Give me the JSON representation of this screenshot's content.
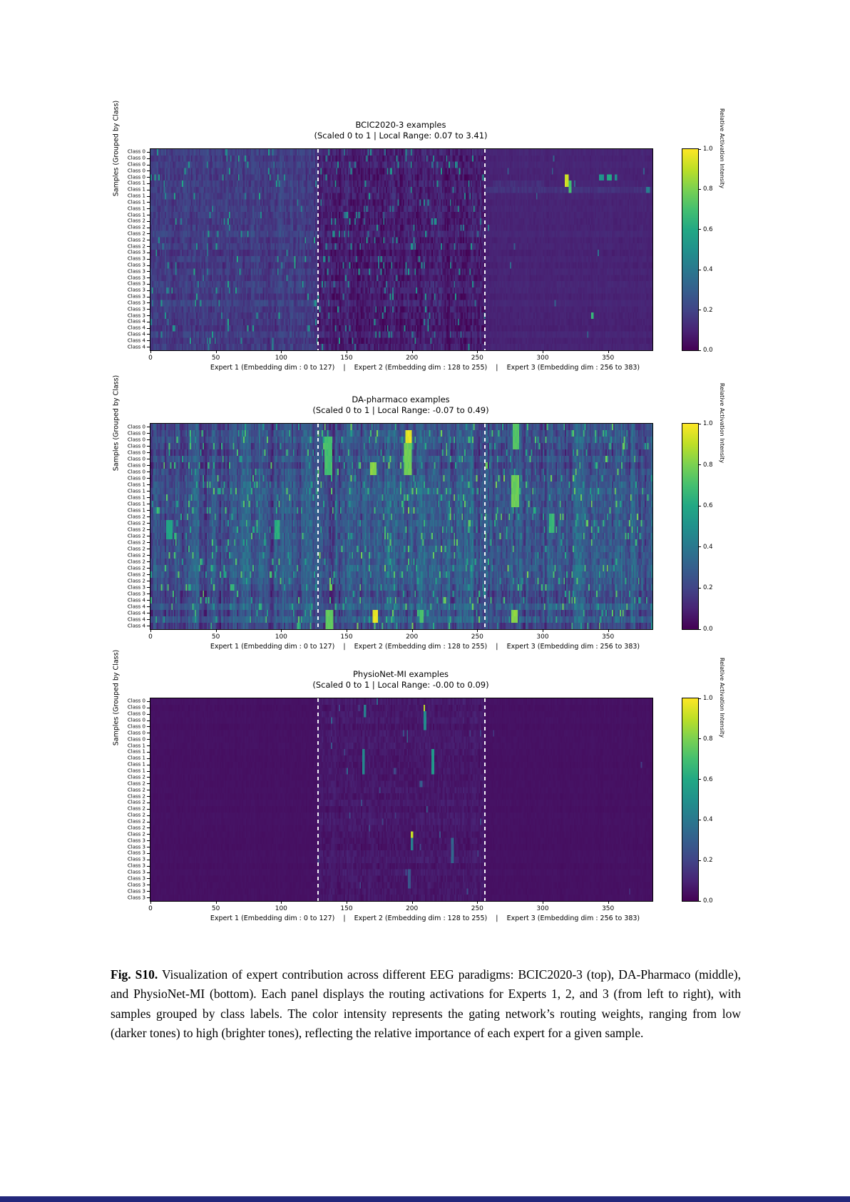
{
  "page": {
    "background": "#ffffff",
    "bottom_bar_color": "#23277b"
  },
  "figure": {
    "ylabel": "Samples (Grouped by Class)",
    "xlabel": "Expert 1 (Embedding dim : 0 to 127)    |    Expert 2 (Embedding dim : 128 to 255)    |    Expert 3 (Embedding dim : 256 to 383)",
    "x_ticks": [
      0,
      50,
      100,
      150,
      200,
      250,
      300,
      350
    ],
    "x_max": 384,
    "expert_boundaries": [
      128,
      256
    ],
    "colorbar": {
      "label": "Relative Activation Intensity",
      "ticks": [
        "1.0",
        "0.8",
        "0.6",
        "0.4",
        "0.2",
        "0.0"
      ],
      "range": [
        0.0,
        1.0
      ],
      "colormap": "viridis"
    }
  },
  "chart_data": [
    {
      "type": "heatmap",
      "title": "BCIC2020-3 examples",
      "subtitle": "(Scaled 0 to 1 | Local Range: 0.07 to 3.41)",
      "xlabel": "Expert 1 (Embedding dim : 0 to 127)    |    Expert 2 (Embedding dim : 128 to 255)    |    Expert 3 (Embedding dim : 256 to 383)",
      "ylabel": "Samples (Grouped by Class)",
      "colormap": "viridis",
      "value_range": [
        0,
        1
      ],
      "n_rows": 32,
      "n_cols": 384,
      "seed": 11,
      "row_groups": [
        {
          "label": "Class 0",
          "count": 5
        },
        {
          "label": "Class 1",
          "count": 6
        },
        {
          "label": "Class 2",
          "count": 5
        },
        {
          "label": "Class 3",
          "count": 11
        },
        {
          "label": "Class 4",
          "count": 5
        }
      ],
      "regions": [
        {
          "name": "Expert 1",
          "col_start": 0,
          "col_end": 128,
          "base": 0.17,
          "col_amp": 0.1,
          "row_amp": 0.05,
          "cell_noise": 0.1,
          "fleck_density": 0.03,
          "fleck_min": 0.4,
          "fleck_max": 0.62
        },
        {
          "name": "Expert 2",
          "col_start": 128,
          "col_end": 256,
          "base": 0.08,
          "col_amp": 0.09,
          "row_amp": 0.05,
          "cell_noise": 0.12,
          "fleck_density": 0.045,
          "fleck_min": 0.35,
          "fleck_max": 0.55
        },
        {
          "name": "Expert 3",
          "col_start": 256,
          "col_end": 384,
          "base": 0.1,
          "col_amp": 0.015,
          "row_amp": 0.02,
          "cell_noise": 0.025,
          "fleck_density": 0.003,
          "fleck_min": 0.25,
          "fleck_max": 0.4
        }
      ],
      "hotspots": [
        {
          "c0": 256,
          "c1": 383,
          "r0": 6,
          "r1": 6,
          "v": 0.17
        },
        {
          "c0": 262,
          "c1": 300,
          "r0": 5,
          "r1": 5,
          "v": 0.16
        },
        {
          "c0": 317,
          "c1": 319,
          "r0": 4,
          "r1": 5,
          "v": 0.95
        },
        {
          "c0": 320,
          "c1": 321,
          "r0": 5,
          "r1": 6,
          "v": 0.72
        },
        {
          "c0": 343,
          "c1": 346,
          "r0": 4,
          "r1": 4,
          "v": 0.55
        },
        {
          "c0": 349,
          "c1": 352,
          "r0": 4,
          "r1": 4,
          "v": 0.62
        },
        {
          "c0": 355,
          "c1": 356,
          "r0": 4,
          "r1": 4,
          "v": 0.5
        },
        {
          "c0": 337,
          "c1": 338,
          "r0": 26,
          "r1": 26,
          "v": 0.68
        },
        {
          "c0": 379,
          "c1": 381,
          "r0": 6,
          "r1": 6,
          "v": 0.45
        }
      ]
    },
    {
      "type": "heatmap",
      "title": "DA-pharmaco examples",
      "subtitle": "(Scaled 0 to 1 | Local Range: -0.07 to 0.49)",
      "xlabel": "Expert 1 (Embedding dim : 0 to 127)    |    Expert 2 (Embedding dim : 128 to 255)    |    Expert 3 (Embedding dim : 256 to 383)",
      "ylabel": "Samples (Grouped by Class)",
      "colormap": "viridis",
      "value_range": [
        0,
        1
      ],
      "n_rows": 32,
      "n_cols": 384,
      "seed": 7,
      "row_groups": [
        {
          "label": "Class 0",
          "count": 9
        },
        {
          "label": "Class 1",
          "count": 5
        },
        {
          "label": "Class 2",
          "count": 11
        },
        {
          "label": "Class 3",
          "count": 2
        },
        {
          "label": "Class 4",
          "count": 5
        }
      ],
      "regions": [
        {
          "name": "Expert 1",
          "col_start": 0,
          "col_end": 128,
          "base": 0.22,
          "col_amp": 0.28,
          "row_amp": 0.1,
          "cell_noise": 0.14,
          "fleck_density": 0.05,
          "fleck_min": 0.5,
          "fleck_max": 0.75
        },
        {
          "name": "Expert 2",
          "col_start": 128,
          "col_end": 256,
          "base": 0.24,
          "col_amp": 0.28,
          "row_amp": 0.1,
          "cell_noise": 0.16,
          "fleck_density": 0.06,
          "fleck_min": 0.5,
          "fleck_max": 0.8
        },
        {
          "name": "Expert 3",
          "col_start": 256,
          "col_end": 384,
          "base": 0.24,
          "col_amp": 0.3,
          "row_amp": 0.1,
          "cell_noise": 0.15,
          "fleck_density": 0.06,
          "fleck_min": 0.5,
          "fleck_max": 0.8
        }
      ],
      "hotspots": [
        {
          "c0": 195,
          "c1": 199,
          "r0": 1,
          "r1": 2,
          "v": 0.98
        },
        {
          "c0": 194,
          "c1": 199,
          "r0": 3,
          "r1": 7,
          "v": 0.8
        },
        {
          "c0": 133,
          "c1": 138,
          "r0": 2,
          "r1": 7,
          "v": 0.72
        },
        {
          "c0": 168,
          "c1": 172,
          "r0": 6,
          "r1": 7,
          "v": 0.85
        },
        {
          "c0": 277,
          "c1": 281,
          "r0": 0,
          "r1": 3,
          "v": 0.75
        },
        {
          "c0": 276,
          "c1": 281,
          "r0": 8,
          "r1": 12,
          "v": 0.8
        },
        {
          "c0": 305,
          "c1": 308,
          "r0": 14,
          "r1": 16,
          "v": 0.7
        },
        {
          "c0": 95,
          "c1": 98,
          "r0": 15,
          "r1": 17,
          "v": 0.65
        },
        {
          "c0": 12,
          "c1": 16,
          "r0": 15,
          "r1": 17,
          "v": 0.6
        },
        {
          "c0": 170,
          "c1": 173,
          "r0": 29,
          "r1": 30,
          "v": 1.0
        },
        {
          "c0": 134,
          "c1": 139,
          "r0": 29,
          "r1": 31,
          "v": 0.78
        },
        {
          "c0": 276,
          "c1": 280,
          "r0": 29,
          "r1": 30,
          "v": 0.85
        },
        {
          "c0": 206,
          "c1": 208,
          "r0": 29,
          "r1": 30,
          "v": 0.75
        }
      ]
    },
    {
      "type": "heatmap",
      "title": "PhysioNet-MI examples",
      "subtitle": "(Scaled 0 to 1 | Local Range: -0.00 to 0.09)",
      "xlabel": "Expert 1 (Embedding dim : 0 to 127)    |    Expert 2 (Embedding dim : 128 to 255)    |    Expert 3 (Embedding dim : 256 to 383)",
      "ylabel": "Samples (Grouped by Class)",
      "colormap": "viridis",
      "value_range": [
        0,
        1
      ],
      "n_rows": 32,
      "n_cols": 384,
      "seed": 5,
      "row_groups": [
        {
          "label": "Class 0",
          "count": 7
        },
        {
          "label": "Class 1",
          "count": 5
        },
        {
          "label": "Class 2",
          "count": 10
        },
        {
          "label": "Class 3",
          "count": 10
        }
      ],
      "regions": [
        {
          "name": "Expert 1",
          "col_start": 0,
          "col_end": 128,
          "base": 0.045,
          "col_amp": 0.008,
          "row_amp": 0.006,
          "cell_noise": 0.012,
          "fleck_density": 0.0,
          "fleck_min": 0.0,
          "fleck_max": 0.0
        },
        {
          "name": "Expert 2",
          "col_start": 128,
          "col_end": 256,
          "base": 0.065,
          "col_amp": 0.03,
          "row_amp": 0.02,
          "cell_noise": 0.05,
          "fleck_density": 0.01,
          "fleck_min": 0.18,
          "fleck_max": 0.35
        },
        {
          "name": "Expert 3",
          "col_start": 256,
          "col_end": 384,
          "base": 0.045,
          "col_amp": 0.008,
          "row_amp": 0.006,
          "cell_noise": 0.012,
          "fleck_density": 0.001,
          "fleck_min": 0.12,
          "fleck_max": 0.2
        }
      ],
      "hotspots": [
        {
          "c0": 209,
          "c1": 209,
          "r0": 1,
          "r1": 1,
          "v": 0.9
        },
        {
          "c0": 209,
          "c1": 210,
          "r0": 2,
          "r1": 4,
          "v": 0.5
        },
        {
          "c0": 163,
          "c1": 164,
          "r0": 1,
          "r1": 2,
          "v": 0.45
        },
        {
          "c0": 162,
          "c1": 163,
          "r0": 8,
          "r1": 11,
          "v": 0.5
        },
        {
          "c0": 215,
          "c1": 216,
          "r0": 8,
          "r1": 11,
          "v": 0.55
        },
        {
          "c0": 196,
          "c1": 196,
          "r0": 5,
          "r1": 6,
          "v": 0.35
        },
        {
          "c0": 199,
          "c1": 200,
          "r0": 21,
          "r1": 21,
          "v": 0.95
        },
        {
          "c0": 199,
          "c1": 200,
          "r0": 22,
          "r1": 23,
          "v": 0.45
        },
        {
          "c0": 230,
          "c1": 231,
          "r0": 22,
          "r1": 25,
          "v": 0.35
        },
        {
          "c0": 197,
          "c1": 198,
          "r0": 27,
          "r1": 29,
          "v": 0.3
        }
      ]
    }
  ],
  "caption": {
    "label": "Fig. S10.",
    "text": " Visualization of expert contribution across different EEG paradigms: BCIC2020-3 (top), DA-Pharmaco (middle), and PhysioNet-MI (bottom). Each panel displays the routing activations for Experts 1, 2, and 3 (from left to right), with samples grouped by class labels. The color intensity represents the gating network’s routing weights, ranging from low (darker tones) to high (brighter tones), reflecting the relative importance of each expert for a given sample."
  }
}
